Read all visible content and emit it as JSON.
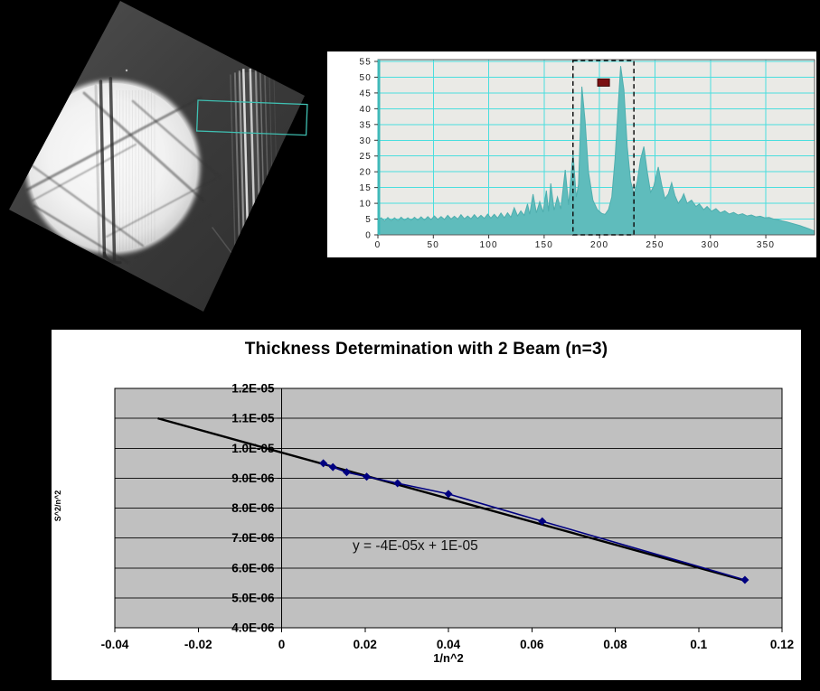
{
  "tem_image": {
    "type": "tem-micrograph",
    "content": "bright-field TEM aperture disk with bend contours and thickness fringes",
    "selection_box_color": "#3fc0b2"
  },
  "chart_data": [
    {
      "type": "area",
      "title": "",
      "xlabel": "",
      "ylabel": "",
      "x_range": [
        0,
        394
      ],
      "y_range": [
        0,
        55
      ],
      "x_ticks": [
        0,
        50,
        100,
        150,
        200,
        250,
        300,
        350
      ],
      "y_ticks": [
        0,
        5,
        10,
        15,
        20,
        25,
        30,
        35,
        40,
        45,
        50,
        55
      ],
      "grid": "on",
      "grid_color": "#4ADEDE",
      "plot_bg": "#EAEAE6",
      "fill_color": "#5FBCBC",
      "edge_color": "#4FAEAE",
      "axis_color": "#3FB9B9",
      "selection_region": {
        "x1": 176,
        "x2": 231,
        "style": "dashed",
        "color": "#111111"
      },
      "cursor_marker": {
        "x": 203.6,
        "y": 48.3,
        "color": "#7B1113"
      },
      "points": [
        [
          0,
          4.9
        ],
        [
          3,
          5.4
        ],
        [
          6,
          4.4
        ],
        [
          9,
          5.5
        ],
        [
          12,
          4.5
        ],
        [
          15,
          5.4
        ],
        [
          18,
          4.5
        ],
        [
          21,
          5.6
        ],
        [
          24,
          4.6
        ],
        [
          27,
          5.4
        ],
        [
          30,
          4.6
        ],
        [
          33,
          5.6
        ],
        [
          36,
          4.7
        ],
        [
          39,
          5.7
        ],
        [
          42,
          4.7
        ],
        [
          45,
          5.8
        ],
        [
          48,
          4.8
        ],
        [
          51,
          6.0
        ],
        [
          54,
          4.9
        ],
        [
          57,
          5.8
        ],
        [
          60,
          4.9
        ],
        [
          63,
          6.2
        ],
        [
          66,
          5.0
        ],
        [
          69,
          5.9
        ],
        [
          72,
          5.0
        ],
        [
          75,
          6.4
        ],
        [
          78,
          5.1
        ],
        [
          81,
          6.0
        ],
        [
          84,
          5.1
        ],
        [
          87,
          6.4
        ],
        [
          90,
          5.2
        ],
        [
          93,
          6.2
        ],
        [
          96,
          5.2
        ],
        [
          99,
          6.6
        ],
        [
          102,
          5.3
        ],
        [
          105,
          6.5
        ],
        [
          108,
          5.3
        ],
        [
          111,
          6.9
        ],
        [
          114,
          5.4
        ],
        [
          117,
          7.0
        ],
        [
          120,
          5.6
        ],
        [
          123,
          8.6
        ],
        [
          126,
          6.0
        ],
        [
          129,
          7.6
        ],
        [
          132,
          6.2
        ],
        [
          135,
          9.8
        ],
        [
          137,
          6.5
        ],
        [
          140,
          12.9
        ],
        [
          143,
          7.0
        ],
        [
          146,
          10.5
        ],
        [
          149,
          7.2
        ],
        [
          152,
          14.0
        ],
        [
          154,
          7.4
        ],
        [
          156,
          16.3
        ],
        [
          159,
          7.8
        ],
        [
          162,
          12.0
        ],
        [
          165,
          8.2
        ],
        [
          169,
          20.6
        ],
        [
          172,
          9.5
        ],
        [
          176,
          26.0
        ],
        [
          179,
          12.0
        ],
        [
          181,
          16.0
        ],
        [
          184,
          47.0
        ],
        [
          187,
          36.0
        ],
        [
          190,
          20.0
        ],
        [
          194,
          11.0
        ],
        [
          198,
          8.0
        ],
        [
          202,
          6.8
        ],
        [
          205,
          6.5
        ],
        [
          208,
          8.0
        ],
        [
          211,
          12.0
        ],
        [
          214,
          24.0
        ],
        [
          217,
          42.0
        ],
        [
          219,
          53.5
        ],
        [
          222,
          46.0
        ],
        [
          225,
          28.0
        ],
        [
          228,
          17.0
        ],
        [
          231,
          13.0
        ],
        [
          234,
          17.0
        ],
        [
          237,
          24.0
        ],
        [
          240,
          28.0
        ],
        [
          243,
          20.0
        ],
        [
          246,
          13.5
        ],
        [
          249,
          15.5
        ],
        [
          253,
          21.5
        ],
        [
          256,
          16.0
        ],
        [
          259,
          11.5
        ],
        [
          262,
          13.0
        ],
        [
          265,
          16.5
        ],
        [
          268,
          12.5
        ],
        [
          271,
          10.0
        ],
        [
          274,
          11.5
        ],
        [
          276,
          13.0
        ],
        [
          279,
          10.0
        ],
        [
          283,
          11.0
        ],
        [
          287,
          9.0
        ],
        [
          290,
          9.8
        ],
        [
          294,
          8.0
        ],
        [
          297,
          9.0
        ],
        [
          301,
          7.5
        ],
        [
          305,
          8.3
        ],
        [
          309,
          7.0
        ],
        [
          313,
          7.6
        ],
        [
          317,
          6.6
        ],
        [
          321,
          7.1
        ],
        [
          325,
          6.3
        ],
        [
          329,
          6.7
        ],
        [
          333,
          6.0
        ],
        [
          337,
          6.3
        ],
        [
          341,
          5.7
        ],
        [
          345,
          5.9
        ],
        [
          349,
          5.4
        ],
        [
          353,
          5.5
        ],
        [
          357,
          5.0
        ],
        [
          361,
          4.8
        ],
        [
          365,
          4.4
        ],
        [
          369,
          4.1
        ],
        [
          373,
          3.7
        ],
        [
          377,
          3.3
        ],
        [
          381,
          2.9
        ],
        [
          385,
          2.4
        ],
        [
          389,
          1.9
        ],
        [
          392,
          1.5
        ],
        [
          394,
          1.2
        ]
      ]
    },
    {
      "type": "scatter",
      "title": "Thickness Determination with 2 Beam (n=3)",
      "xlabel": "1/n^2",
      "ylabel": "S^2/n^2",
      "equation": "y = -4E-05x + 1E-05",
      "x_range": [
        -0.04,
        0.12
      ],
      "y_range": [
        4e-06,
        1.2e-05
      ],
      "x_tick_labels": [
        "-0.04",
        "-0.02",
        "0",
        "0.02",
        "0.04",
        "0.06",
        "0.08",
        "0.1",
        "0.12"
      ],
      "x_tick_values": [
        -0.04,
        -0.02,
        0,
        0.02,
        0.04,
        0.06,
        0.08,
        0.1,
        0.12
      ],
      "y_tick_labels": [
        "1.2E-05",
        "1.1E-05",
        "1.0E-05",
        "9.0E-06",
        "8.0E-06",
        "7.0E-06",
        "6.0E-06",
        "5.0E-06",
        "4.0E-06"
      ],
      "y_tick_values": [
        1.2e-05,
        1.1e-05,
        1e-05,
        9e-06,
        8e-06,
        7e-06,
        6e-06,
        5e-06,
        4e-06
      ],
      "grid": "horizontal only",
      "plot_bg": "#C0C0C0",
      "grid_color": "#1a1a1a",
      "series_color": "#000080",
      "trend_color": "#000000",
      "legend": "none",
      "points": [
        [
          0.01,
          9.5e-06
        ],
        [
          0.0123,
          9.37e-06
        ],
        [
          0.0156,
          9.2e-06
        ],
        [
          0.0204,
          9.05e-06
        ],
        [
          0.0278,
          8.83e-06
        ],
        [
          0.04,
          8.47e-06
        ],
        [
          0.0625,
          7.56e-06
        ],
        [
          0.1111,
          5.6e-06
        ]
      ],
      "trendline": [
        [
          -0.0297,
          1.1e-05
        ],
        [
          0.1113,
          5.57e-06
        ]
      ]
    }
  ]
}
